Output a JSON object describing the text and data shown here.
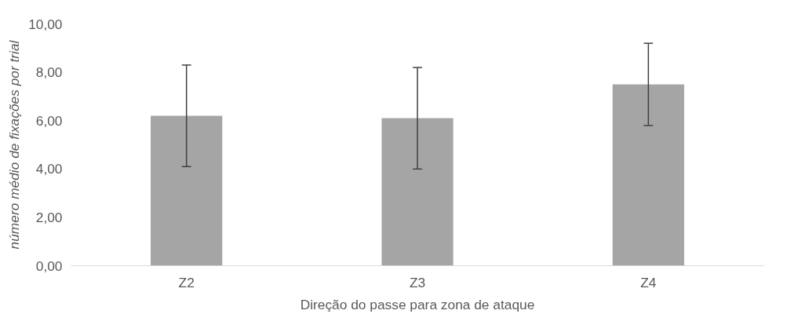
{
  "chart_data": {
    "type": "bar",
    "xlabel": "Direção do passe para zona de ataque",
    "ylabel": "número médio de fixações por trial",
    "categories": [
      "Z2",
      "Z3",
      "Z4"
    ],
    "color": "#a5a5a5",
    "values": [
      6.2,
      6.1,
      7.5
    ],
    "errors": [
      2.1,
      2.1,
      1.7
    ],
    "ylim": [
      0,
      10
    ],
    "yticks": [
      {
        "value": 0,
        "label": "0,00"
      },
      {
        "value": 2,
        "label": "2,00"
      },
      {
        "value": 4,
        "label": "4,00"
      },
      {
        "value": 6,
        "label": "6,00"
      },
      {
        "value": 8,
        "label": "8,00"
      },
      {
        "value": 10,
        "label": "10,00"
      }
    ],
    "grid": false
  }
}
